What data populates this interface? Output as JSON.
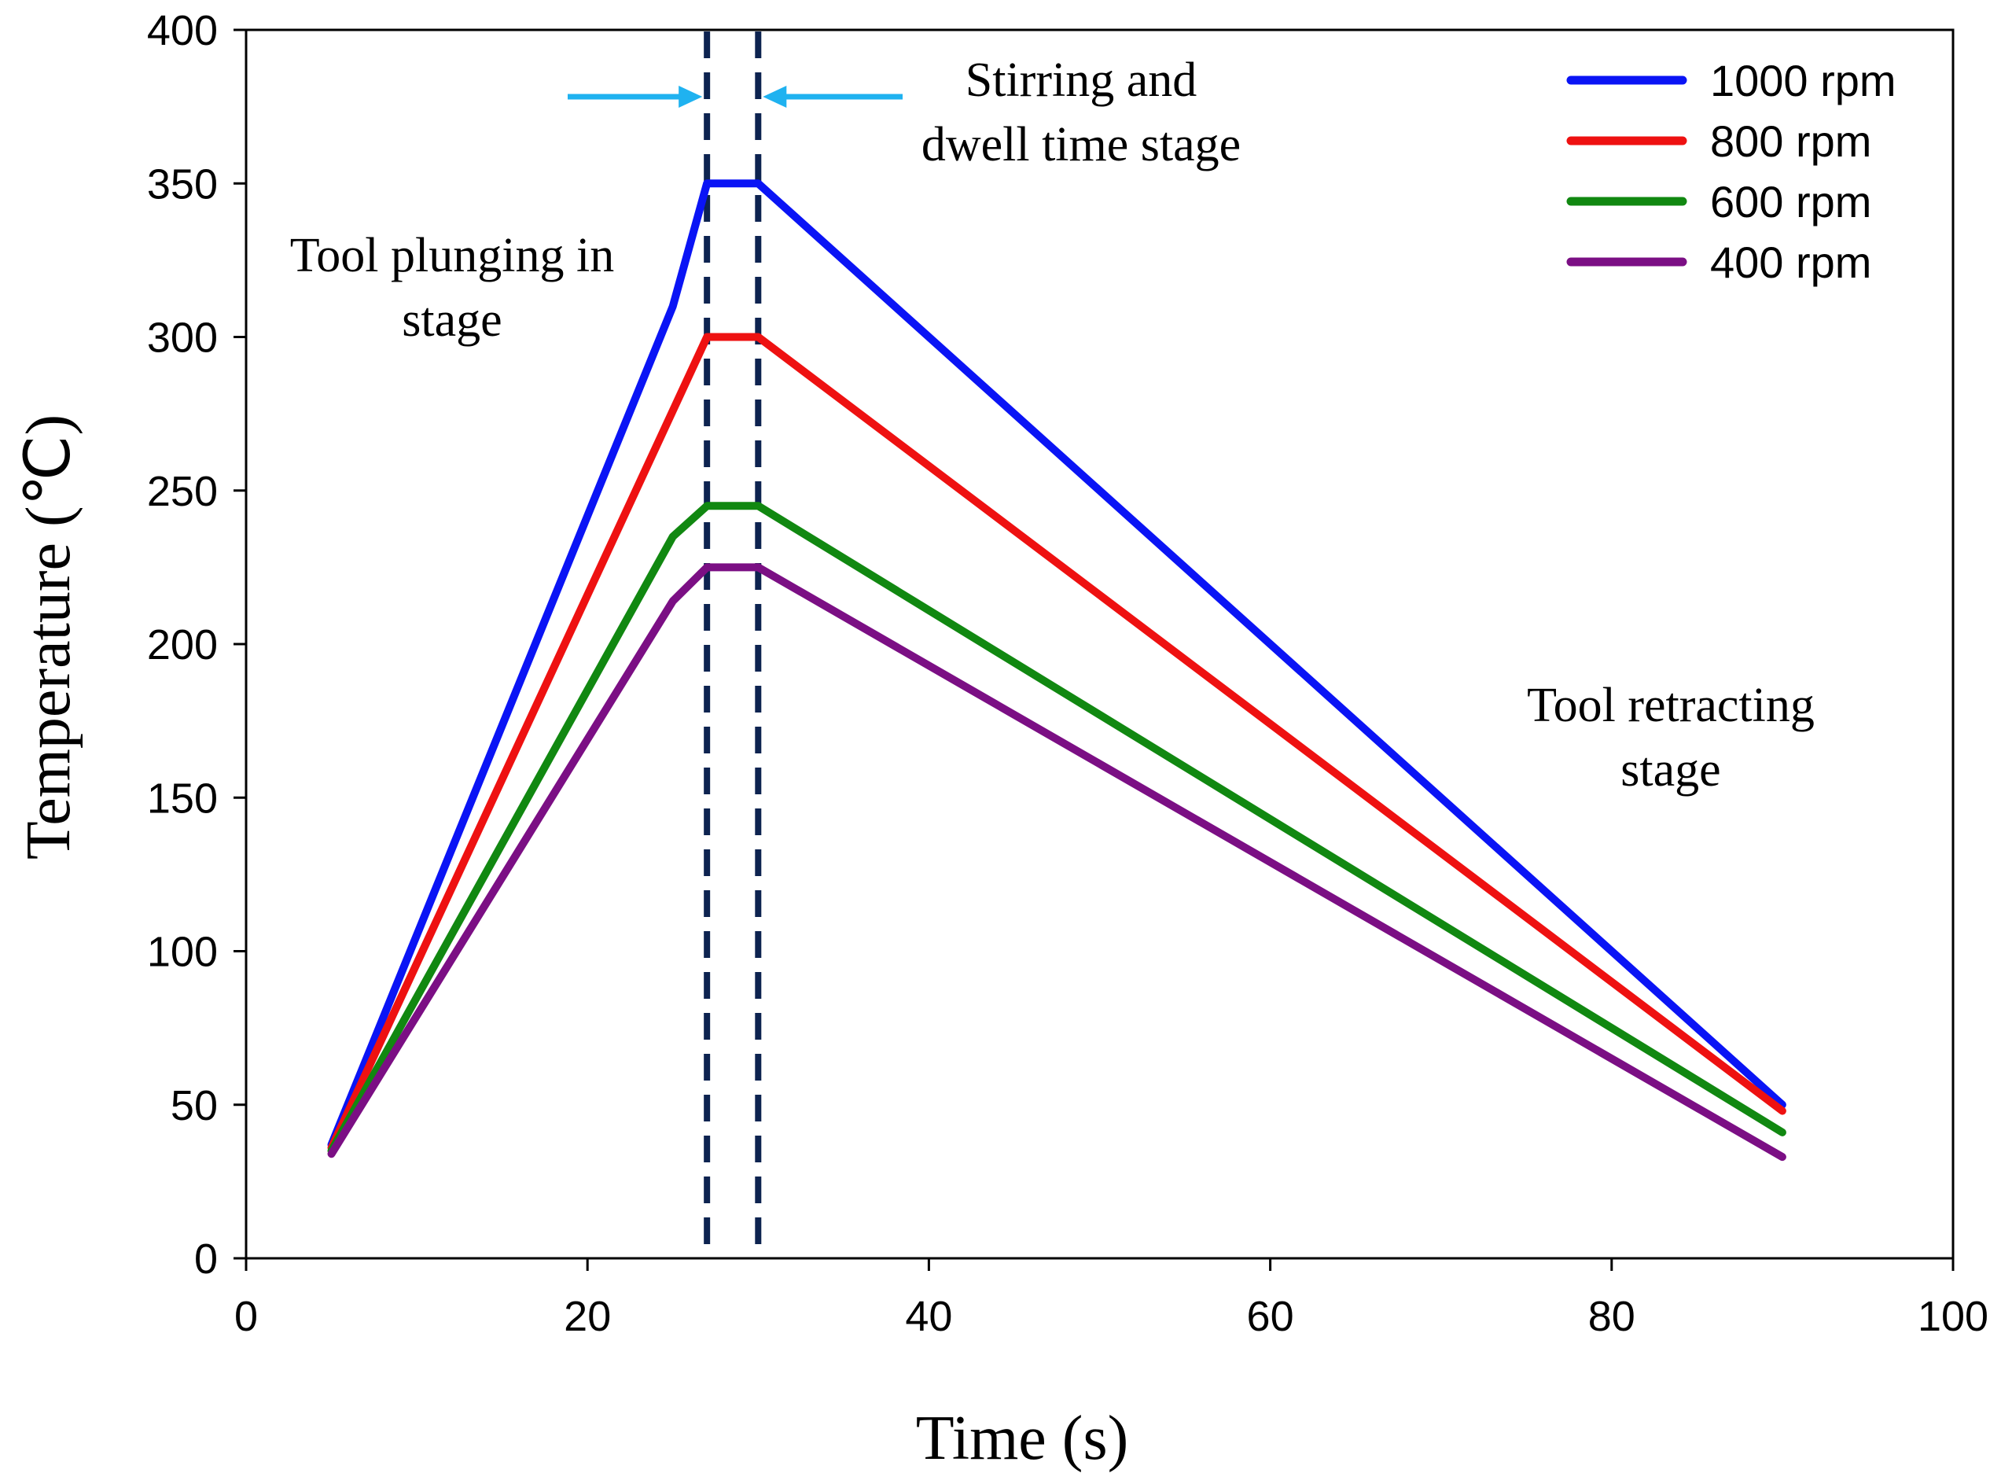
{
  "chart_data": {
    "type": "line",
    "title": "",
    "xlabel": "Time (s)",
    "ylabel": "Temperature (℃)",
    "xlim": [
      0,
      100
    ],
    "ylim": [
      0,
      400
    ],
    "xticks": [
      0,
      20,
      40,
      60,
      80,
      100
    ],
    "yticks": [
      0,
      50,
      100,
      150,
      200,
      250,
      300,
      350,
      400
    ],
    "grid": false,
    "legend_position": "top-right",
    "series": [
      {
        "name": "1000 rpm",
        "color": "#0a14f5",
        "x": [
          5,
          25,
          27,
          30,
          90
        ],
        "y": [
          37,
          310,
          350,
          350,
          50
        ]
      },
      {
        "name": "800 rpm",
        "color": "#ee1111",
        "x": [
          5,
          27,
          30,
          90
        ],
        "y": [
          36,
          300,
          300,
          48
        ]
      },
      {
        "name": "600 rpm",
        "color": "#118811",
        "x": [
          5,
          25,
          27,
          30,
          90
        ],
        "y": [
          35,
          235,
          245,
          245,
          41
        ]
      },
      {
        "name": "400 rpm",
        "color": "#7b0f84",
        "x": [
          5,
          25,
          27,
          30,
          90
        ],
        "y": [
          34,
          214,
          225,
          225,
          33
        ]
      }
    ],
    "stage_markers": [
      27,
      30
    ],
    "annotations": [
      {
        "lines": [
          "Stirring and",
          "dwell time stage"
        ]
      },
      {
        "lines": [
          "Tool plunging in",
          "stage"
        ]
      },
      {
        "lines": [
          "Tool retracting",
          "stage"
        ]
      }
    ]
  }
}
